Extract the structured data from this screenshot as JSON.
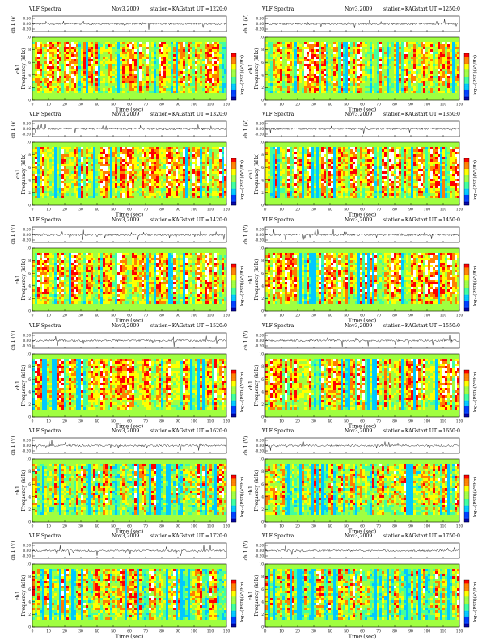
{
  "page": {
    "colormap": [
      "#0000a0",
      "#0040ff",
      "#00c8ff",
      "#40ffa0",
      "#a0ff40",
      "#ffff00",
      "#ff8000",
      "#ff0000",
      "#ffffff"
    ]
  },
  "chart_data": [
    {
      "type": "heatmap",
      "title_left": "VLF Spectra",
      "date": "Nov3,2009",
      "station": "station=KAG",
      "start": "start  UT =1220:0",
      "timeseries_ylabel": "ch 1 (V)",
      "timeseries_yticks": [
        "0.20",
        "0.00",
        "-0.20"
      ],
      "spec_ylabel_line1": "ch1",
      "spec_ylabel_line2": "Frequency  (kHz)",
      "yticks": [
        "0",
        "2",
        "4",
        "6",
        "8",
        "10"
      ],
      "xticks": [
        "0",
        "10",
        "20",
        "30",
        "40",
        "50",
        "60",
        "70",
        "80",
        "90",
        "100",
        "110",
        "120"
      ],
      "xlabel": "Time  (sec)",
      "colorbar_label": "log₁₀(PSD)(V²/Hz)",
      "xlim": [
        0,
        120
      ],
      "ylim": [
        0,
        10
      ]
    },
    {
      "type": "heatmap",
      "title_left": "VLF Spectra",
      "date": "Nov3,2009",
      "station": "station=KAG",
      "start": "start  UT =1250:0",
      "timeseries_ylabel": "ch 1 (V)",
      "timeseries_yticks": [
        "0.20",
        "0.00",
        "-0.20"
      ],
      "spec_ylabel_line1": "ch1",
      "spec_ylabel_line2": "Frequency  (kHz)",
      "yticks": [
        "0",
        "2",
        "4",
        "6",
        "8",
        "10"
      ],
      "xticks": [
        "0",
        "10",
        "20",
        "30",
        "40",
        "50",
        "60",
        "70",
        "80",
        "90",
        "100",
        "110",
        "120"
      ],
      "xlabel": "Time  (sec)",
      "colorbar_label": "log₁₀(PSD)(V²/Hz)",
      "xlim": [
        0,
        120
      ],
      "ylim": [
        0,
        10
      ]
    },
    {
      "type": "heatmap",
      "title_left": "VLF Spectra",
      "date": "Nov3,2009",
      "station": "station=KAG",
      "start": "start  UT =1320:0",
      "timeseries_ylabel": "ch 1 (V)",
      "timeseries_yticks": [
        "0.20",
        "0.00",
        "-0.20"
      ],
      "spec_ylabel_line1": "ch1",
      "spec_ylabel_line2": "Frequency  (kHz)",
      "yticks": [
        "0",
        "2",
        "4",
        "6",
        "8",
        "10"
      ],
      "xticks": [
        "0",
        "10",
        "20",
        "30",
        "40",
        "50",
        "60",
        "70",
        "80",
        "90",
        "100",
        "110",
        "120"
      ],
      "xlabel": "Time  (sec)",
      "colorbar_label": "log₁₀(PSD)(V²/Hz)",
      "xlim": [
        0,
        120
      ],
      "ylim": [
        0,
        10
      ]
    },
    {
      "type": "heatmap",
      "title_left": "VLF Spectra",
      "date": "Nov3,2009",
      "station": "station=KAG",
      "start": "start  UT =1350:0",
      "timeseries_ylabel": "ch 1 (V)",
      "timeseries_yticks": [
        "0.20",
        "0.00",
        "-0.20"
      ],
      "spec_ylabel_line1": "ch1",
      "spec_ylabel_line2": "Frequency  (kHz)",
      "yticks": [
        "0",
        "2",
        "4",
        "6",
        "8",
        "10"
      ],
      "xticks": [
        "0",
        "10",
        "20",
        "30",
        "40",
        "50",
        "60",
        "70",
        "80",
        "90",
        "100",
        "110",
        "120"
      ],
      "xlabel": "Time  (sec)",
      "colorbar_label": "log₁₀(PSD)(V²/Hz)",
      "xlim": [
        0,
        120
      ],
      "ylim": [
        0,
        10
      ]
    },
    {
      "type": "heatmap",
      "title_left": "VLF Spectra",
      "date": "Nov3,2009",
      "station": "station=KAG",
      "start": "start  UT =1420:0",
      "timeseries_ylabel": "ch 1 (V)",
      "timeseries_yticks": [
        "0.20",
        "0.00",
        "-0.20"
      ],
      "spec_ylabel_line1": "ch1",
      "spec_ylabel_line2": "Frequency  (kHz)",
      "yticks": [
        "0",
        "2",
        "4",
        "6",
        "8",
        "10"
      ],
      "xticks": [
        "0",
        "10",
        "20",
        "30",
        "40",
        "50",
        "60",
        "70",
        "80",
        "90",
        "100",
        "110",
        "120"
      ],
      "xlabel": "Time  (sec)",
      "colorbar_label": "log₁₀(PSD)(V²/Hz)",
      "xlim": [
        0,
        120
      ],
      "ylim": [
        0,
        10
      ]
    },
    {
      "type": "heatmap",
      "title_left": "VLF Spectra",
      "date": "Nov3,2009",
      "station": "station=KAG",
      "start": "start  UT =1450:0",
      "timeseries_ylabel": "ch 1 (V)",
      "timeseries_yticks": [
        "0.20",
        "0.00",
        "-0.20"
      ],
      "spec_ylabel_line1": "ch1",
      "spec_ylabel_line2": "Frequency  (kHz)",
      "yticks": [
        "0",
        "2",
        "4",
        "6",
        "8",
        "10"
      ],
      "xticks": [
        "0",
        "10",
        "20",
        "30",
        "40",
        "50",
        "60",
        "70",
        "80",
        "90",
        "100",
        "110",
        "120"
      ],
      "xlabel": "Time  (sec)",
      "colorbar_label": "log₁₀(PSD)(V²/Hz)",
      "xlim": [
        0,
        120
      ],
      "ylim": [
        0,
        10
      ]
    },
    {
      "type": "heatmap",
      "title_left": "VLF Spectra",
      "date": "Nov3,2009",
      "station": "station=KAG",
      "start": "start  UT =1520:0",
      "timeseries_ylabel": "ch 1 (V)",
      "timeseries_yticks": [
        "0.20",
        "0.00",
        "-0.20"
      ],
      "spec_ylabel_line1": "ch1",
      "spec_ylabel_line2": "Frequency  (kHz)",
      "yticks": [
        "0",
        "2",
        "4",
        "6",
        "8",
        "10"
      ],
      "xticks": [
        "0",
        "10",
        "20",
        "30",
        "40",
        "50",
        "60",
        "70",
        "80",
        "90",
        "100",
        "110",
        "120"
      ],
      "xlabel": "Time  (sec)",
      "colorbar_label": "log₁₀(PSD)(V²/Hz)",
      "xlim": [
        0,
        120
      ],
      "ylim": [
        0,
        10
      ]
    },
    {
      "type": "heatmap",
      "title_left": "VLF Spectra",
      "date": "Nov3,2009",
      "station": "station=KAG",
      "start": "start  UT =1550:0",
      "timeseries_ylabel": "ch 1 (V)",
      "timeseries_yticks": [
        "0.20",
        "0.00",
        "-0.20"
      ],
      "spec_ylabel_line1": "ch1",
      "spec_ylabel_line2": "Frequency  (kHz)",
      "yticks": [
        "0",
        "2",
        "4",
        "6",
        "8",
        "10"
      ],
      "xticks": [
        "0",
        "10",
        "20",
        "30",
        "40",
        "50",
        "60",
        "70",
        "80",
        "90",
        "100",
        "110",
        "120"
      ],
      "xlabel": "Time  (sec)",
      "colorbar_label": "log₁₀(PSD)(V²/Hz)",
      "xlim": [
        0,
        120
      ],
      "ylim": [
        0,
        10
      ]
    },
    {
      "type": "heatmap",
      "title_left": "VLF Spectra",
      "date": "Nov3,2009",
      "station": "station=KAG",
      "start": "start  UT =1620:0",
      "timeseries_ylabel": "ch 1 (V)",
      "timeseries_yticks": [
        "0.20",
        "0.00",
        "-0.20"
      ],
      "spec_ylabel_line1": "ch1",
      "spec_ylabel_line2": "Frequency  (kHz)",
      "yticks": [
        "0",
        "2",
        "4",
        "6",
        "8",
        "10"
      ],
      "xticks": [
        "0",
        "10",
        "20",
        "30",
        "40",
        "50",
        "60",
        "70",
        "80",
        "90",
        "100",
        "110",
        "120"
      ],
      "xlabel": "Time  (sec)",
      "colorbar_label": "log₁₀(PSD)(V²/Hz)",
      "xlim": [
        0,
        120
      ],
      "ylim": [
        0,
        10
      ]
    },
    {
      "type": "heatmap",
      "title_left": "VLF Spectra",
      "date": "Nov3,2009",
      "station": "station=KAG",
      "start": "start  UT =1650:0",
      "timeseries_ylabel": "ch 1 (V)",
      "timeseries_yticks": [
        "0.20",
        "0.00",
        "-0.20"
      ],
      "spec_ylabel_line1": "ch1",
      "spec_ylabel_line2": "Frequency  (kHz)",
      "yticks": [
        "0",
        "2",
        "4",
        "6",
        "8",
        "10"
      ],
      "xticks": [
        "0",
        "10",
        "20",
        "30",
        "40",
        "50",
        "60",
        "70",
        "80",
        "90",
        "100",
        "110",
        "120"
      ],
      "xlabel": "Time  (sec)",
      "colorbar_label": "log₁₀(PSD)(V²/Hz)",
      "xlim": [
        0,
        120
      ],
      "ylim": [
        0,
        10
      ]
    },
    {
      "type": "heatmap",
      "title_left": "VLF Spectra",
      "date": "Nov3,2009",
      "station": "station=KAG",
      "start": "start  UT =1720:0",
      "timeseries_ylabel": "ch 1 (V)",
      "timeseries_yticks": [
        "0.20",
        "0.00",
        "-0.20"
      ],
      "spec_ylabel_line1": "ch1",
      "spec_ylabel_line2": "Frequency  (kHz)",
      "yticks": [
        "0",
        "2",
        "4",
        "6",
        "8",
        "10"
      ],
      "xticks": [
        "0",
        "10",
        "20",
        "30",
        "40",
        "50",
        "60",
        "70",
        "80",
        "90",
        "100",
        "110",
        "120"
      ],
      "xlabel": "Time  (sec)",
      "colorbar_label": "log₁₀(PSD)(V²/Hz)",
      "xlim": [
        0,
        120
      ],
      "ylim": [
        0,
        10
      ]
    },
    {
      "type": "heatmap",
      "title_left": "VLF Spectra",
      "date": "Nov3,2009",
      "station": "station=KAG",
      "start": "start  UT =1750:0",
      "timeseries_ylabel": "ch 1 (V)",
      "timeseries_yticks": [
        "0.20",
        "0.00",
        "-0.20"
      ],
      "spec_ylabel_line1": "ch1",
      "spec_ylabel_line2": "Frequency  (kHz)",
      "yticks": [
        "0",
        "2",
        "4",
        "6",
        "8",
        "10"
      ],
      "xticks": [
        "0",
        "10",
        "20",
        "30",
        "40",
        "50",
        "60",
        "70",
        "80",
        "90",
        "100",
        "110",
        "120"
      ],
      "xlabel": "Time  (sec)",
      "colorbar_label": "log₁₀(PSD)(V²/Hz)",
      "xlim": [
        0,
        120
      ],
      "ylim": [
        0,
        10
      ]
    }
  ]
}
